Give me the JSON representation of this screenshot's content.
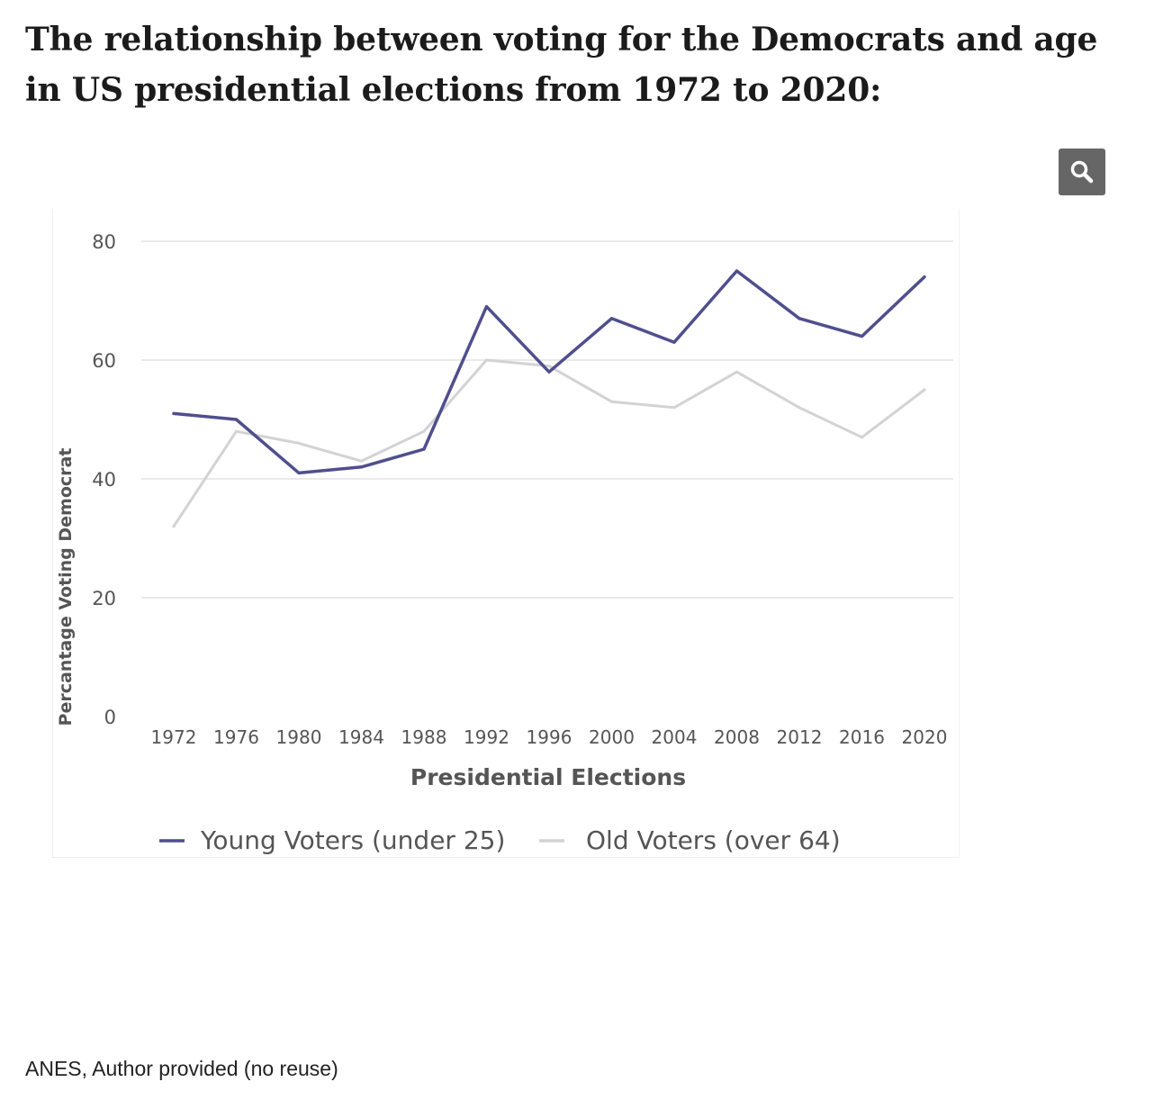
{
  "title": "The relationship between voting for the Democrats and age in US presidential elections from 1972 to 2020:",
  "caption": "ANES, Author provided (no reuse)",
  "zoom_icon": "search-icon",
  "colors": {
    "young": "#4f4f8e",
    "old": "#d3d3d3",
    "grid": "#e4e4e4",
    "text": "#555555"
  },
  "chart_data": {
    "type": "line",
    "title": "",
    "xlabel": "Presidential Elections",
    "ylabel": "Percantage Voting Democrat",
    "ylim": [
      0,
      80
    ],
    "yticks": [
      0,
      20,
      40,
      60,
      80
    ],
    "grid": true,
    "legend": "bottom",
    "categories": [
      "1972",
      "1976",
      "1980",
      "1984",
      "1988",
      "1992",
      "1996",
      "2000",
      "2004",
      "2008",
      "2012",
      "2016",
      "2020"
    ],
    "series": [
      {
        "name": "Young Voters (under 25)",
        "values": [
          51,
          50,
          41,
          42,
          45,
          69,
          58,
          67,
          63,
          75,
          67,
          64,
          74
        ]
      },
      {
        "name": "Old Voters (over 64)",
        "values": [
          32,
          48,
          46,
          43,
          48,
          60,
          59,
          53,
          52,
          58,
          52,
          47,
          55
        ]
      }
    ]
  }
}
